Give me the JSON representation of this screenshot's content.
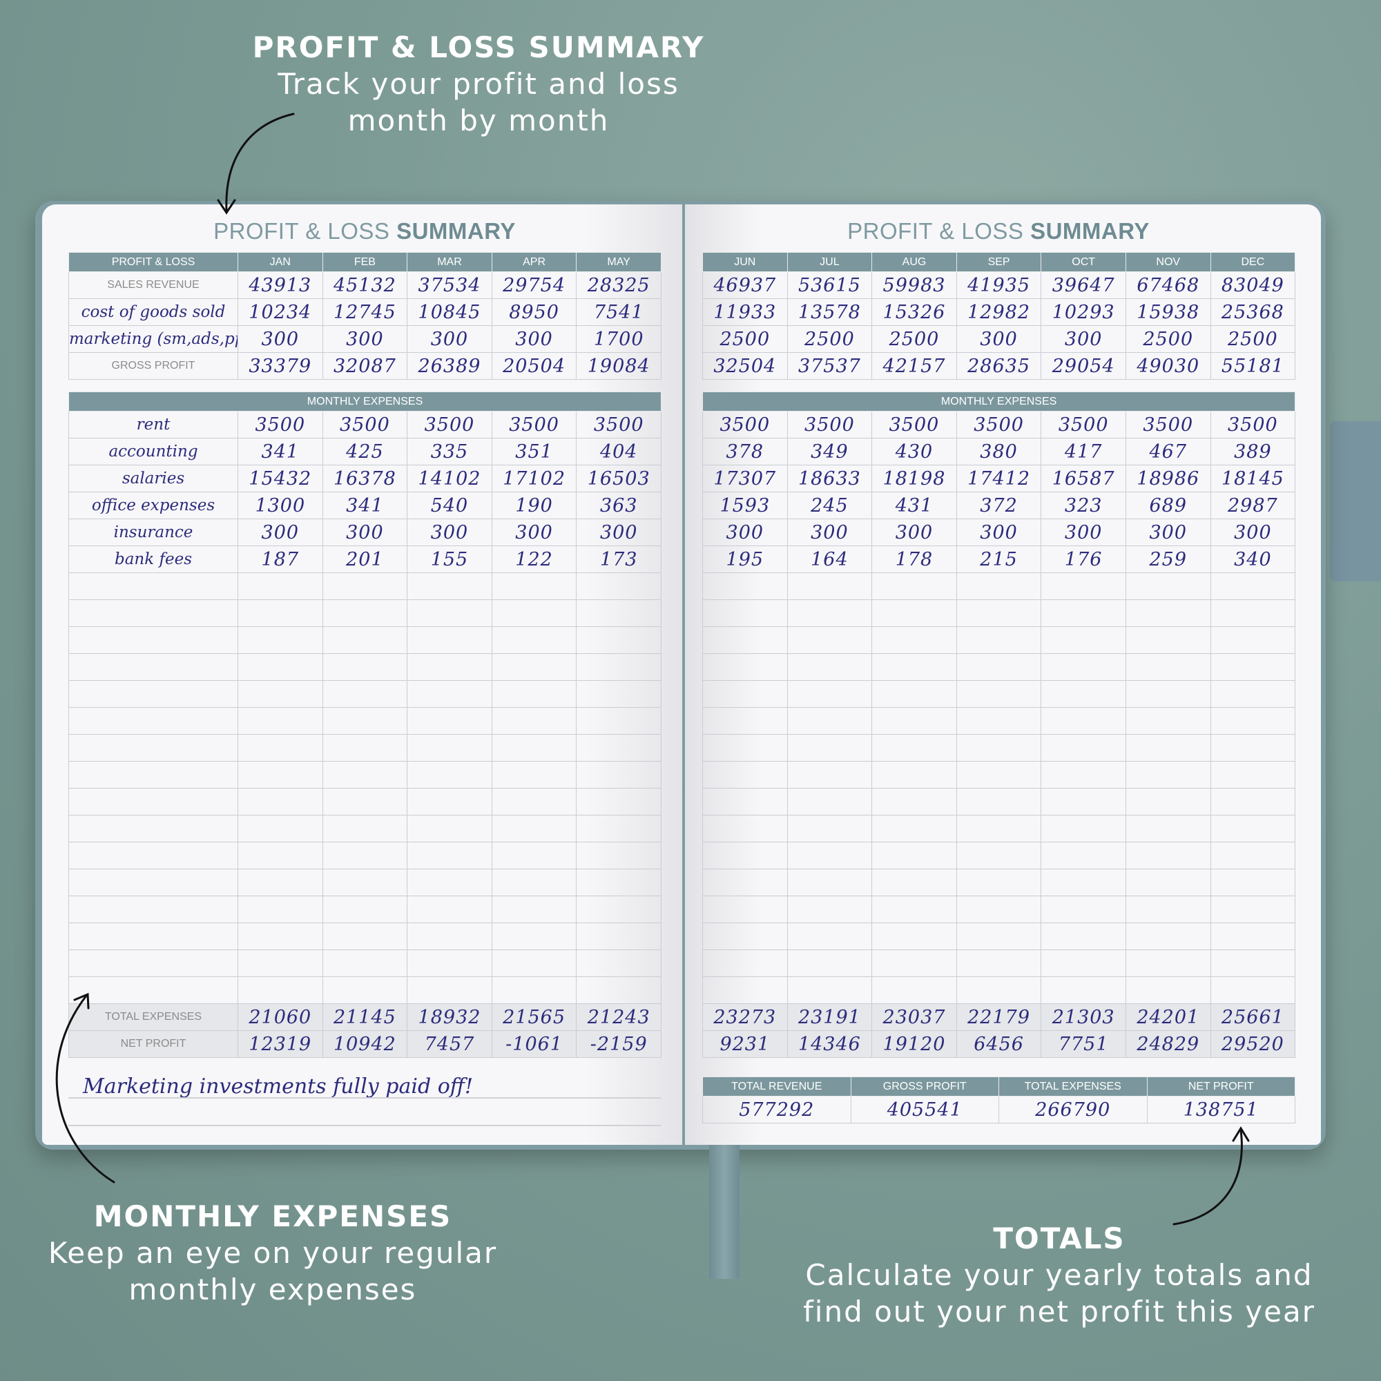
{
  "callouts": {
    "top": {
      "title": "PROFIT & LOSS SUMMARY",
      "lines": [
        "Track your profit and loss",
        "month by month"
      ]
    },
    "expenses": {
      "title": "MONTHLY EXPENSES",
      "lines": [
        "Keep an eye on your regular",
        "monthly expenses"
      ]
    },
    "totals": {
      "title": "TOTALS",
      "lines": [
        "Calculate your yearly totals and",
        "find out your net profit this year"
      ]
    }
  },
  "colors": {
    "header": "#7b979d",
    "ink": "#2c2b7c",
    "background": "#7d9b95"
  },
  "left_page": {
    "title_light": "PROFIT & LOSS",
    "title_bold": "SUMMARY",
    "header_label": "PROFIT & LOSS",
    "months": [
      "JAN",
      "FEB",
      "MAR",
      "APR",
      "MAY"
    ],
    "pl_rows": [
      {
        "label": "SALES REVENUE",
        "handwritten": false,
        "values": [
          "43913",
          "45132",
          "37534",
          "29754",
          "28325"
        ]
      },
      {
        "label": "cost of goods sold",
        "handwritten": true,
        "values": [
          "10234",
          "12745",
          "10845",
          "8950",
          "7541"
        ]
      },
      {
        "label": "marketing (sm,ads,ppc)",
        "handwritten": true,
        "values": [
          "300",
          "300",
          "300",
          "300",
          "1700"
        ]
      },
      {
        "label": "GROSS PROFIT",
        "handwritten": false,
        "values": [
          "33379",
          "32087",
          "26389",
          "20504",
          "19084"
        ]
      }
    ],
    "expenses_header": "MONTHLY EXPENSES",
    "expense_rows": [
      {
        "label": "rent",
        "values": [
          "3500",
          "3500",
          "3500",
          "3500",
          "3500"
        ]
      },
      {
        "label": "accounting",
        "values": [
          "341",
          "425",
          "335",
          "351",
          "404"
        ]
      },
      {
        "label": "salaries",
        "values": [
          "15432",
          "16378",
          "14102",
          "17102",
          "16503"
        ]
      },
      {
        "label": "office expenses",
        "values": [
          "1300",
          "341",
          "540",
          "190",
          "363"
        ]
      },
      {
        "label": "insurance",
        "values": [
          "300",
          "300",
          "300",
          "300",
          "300"
        ]
      },
      {
        "label": "bank fees",
        "values": [
          "187",
          "201",
          "155",
          "122",
          "173"
        ]
      }
    ],
    "total_expenses": {
      "label": "TOTAL EXPENSES",
      "values": [
        "21060",
        "21145",
        "18932",
        "21565",
        "21243"
      ]
    },
    "net_profit": {
      "label": "NET PROFIT",
      "values": [
        "12319",
        "10942",
        "7457",
        "-1061",
        "-2159"
      ]
    },
    "note": "Marketing investments fully paid off!"
  },
  "right_page": {
    "title_light": "PROFIT & LOSS",
    "title_bold": "SUMMARY",
    "months": [
      "JUN",
      "JUL",
      "AUG",
      "SEP",
      "OCT",
      "NOV",
      "DEC"
    ],
    "pl_rows": [
      {
        "values": [
          "46937",
          "53615",
          "59983",
          "41935",
          "39647",
          "67468",
          "83049"
        ]
      },
      {
        "values": [
          "11933",
          "13578",
          "15326",
          "12982",
          "10293",
          "15938",
          "25368"
        ]
      },
      {
        "values": [
          "2500",
          "2500",
          "2500",
          "300",
          "300",
          "2500",
          "2500"
        ]
      },
      {
        "values": [
          "32504",
          "37537",
          "42157",
          "28635",
          "29054",
          "49030",
          "55181"
        ]
      }
    ],
    "expenses_header": "MONTHLY EXPENSES",
    "expense_rows": [
      {
        "values": [
          "3500",
          "3500",
          "3500",
          "3500",
          "3500",
          "3500",
          "3500"
        ]
      },
      {
        "values": [
          "378",
          "349",
          "430",
          "380",
          "417",
          "467",
          "389"
        ]
      },
      {
        "values": [
          "17307",
          "18633",
          "18198",
          "17412",
          "16587",
          "18986",
          "18145"
        ]
      },
      {
        "values": [
          "1593",
          "245",
          "431",
          "372",
          "323",
          "689",
          "2987"
        ]
      },
      {
        "values": [
          "300",
          "300",
          "300",
          "300",
          "300",
          "300",
          "300"
        ]
      },
      {
        "values": [
          "195",
          "164",
          "178",
          "215",
          "176",
          "259",
          "340"
        ]
      }
    ],
    "total_expenses": {
      "values": [
        "23273",
        "23191",
        "23037",
        "22179",
        "21303",
        "24201",
        "25661"
      ]
    },
    "net_profit": {
      "values": [
        "9231",
        "14346",
        "19120",
        "6456",
        "7751",
        "24829",
        "29520"
      ]
    },
    "yearly_totals": {
      "headers": [
        "TOTAL REVENUE",
        "GROSS PROFIT",
        "TOTAL EXPENSES",
        "NET PROFIT"
      ],
      "values": [
        "577292",
        "405541",
        "266790",
        "138751"
      ]
    }
  }
}
